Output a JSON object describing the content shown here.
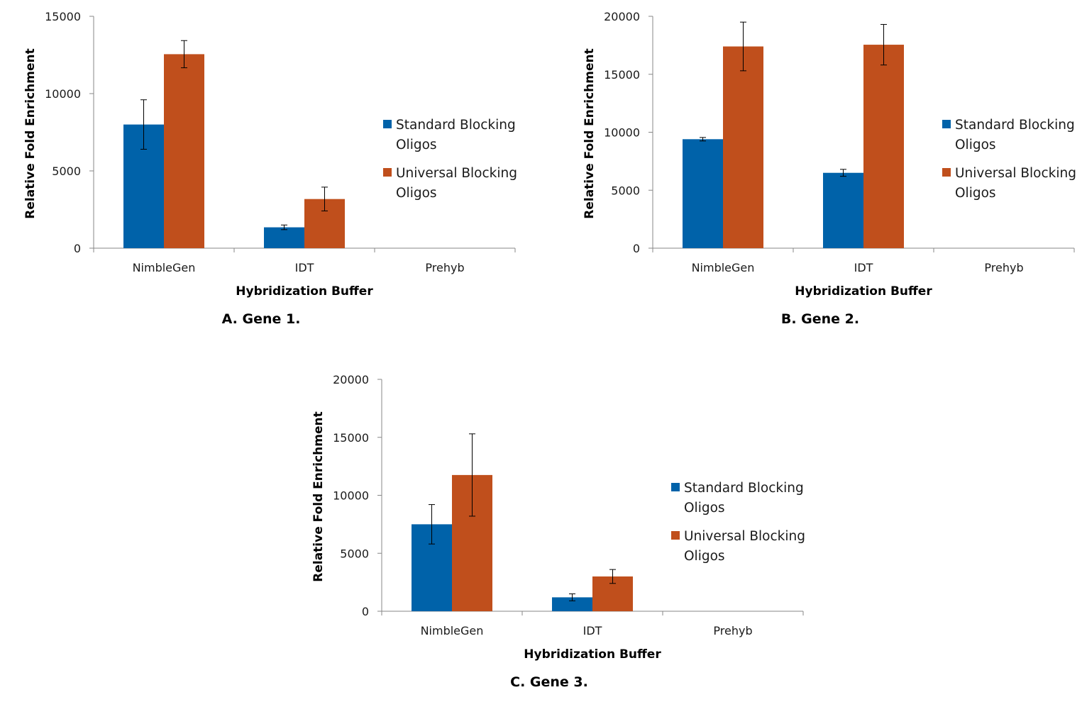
{
  "colors": {
    "standard": "#0062a9",
    "universal": "#c04f1c",
    "axis": "#878787"
  },
  "chart_data": [
    {
      "type": "bar",
      "caption": "A. Gene 1.",
      "categories": [
        "NimbleGen",
        "IDT",
        "Prehyb"
      ],
      "series": [
        {
          "name": "Standard Blocking Oligos",
          "values": [
            8000,
            1350,
            0
          ],
          "errors": [
            1600,
            150,
            0
          ]
        },
        {
          "name": "Universal Blocking Oligos",
          "values": [
            12550,
            3180,
            0
          ],
          "errors": [
            880,
            770,
            0
          ]
        }
      ],
      "xlabel": "Hybridization Buffer",
      "ylabel": "Relative Fold Enrichment",
      "ylim": [
        0,
        15000
      ],
      "yticks": [
        0,
        5000,
        10000,
        15000
      ],
      "grid": false,
      "legend": "right"
    },
    {
      "type": "bar",
      "caption": "B. Gene 2.",
      "categories": [
        "NimbleGen",
        "IDT",
        "Prehyb"
      ],
      "series": [
        {
          "name": "Standard Blocking Oligos",
          "values": [
            9400,
            6500,
            0
          ],
          "errors": [
            150,
            300,
            0
          ]
        },
        {
          "name": "Universal Blocking Oligos",
          "values": [
            17400,
            17550,
            0
          ],
          "errors": [
            2100,
            1750,
            0
          ]
        }
      ],
      "xlabel": "Hybridization Buffer",
      "ylabel": "Relative Fold Enrichment",
      "ylim": [
        0,
        20000
      ],
      "yticks": [
        0,
        5000,
        10000,
        15000,
        20000
      ],
      "grid": false,
      "legend": "right"
    },
    {
      "type": "bar",
      "caption": "C. Gene 3.",
      "categories": [
        "NimbleGen",
        "IDT",
        "Prehyb"
      ],
      "series": [
        {
          "name": "Standard Blocking Oligos",
          "values": [
            7500,
            1200,
            0
          ],
          "errors": [
            1700,
            300,
            0
          ]
        },
        {
          "name": "Universal Blocking Oligos",
          "values": [
            11750,
            3000,
            0
          ],
          "errors": [
            3550,
            600,
            0
          ]
        }
      ],
      "xlabel": "Hybridization Buffer",
      "ylabel": "Relative Fold Enrichment",
      "ylim": [
        0,
        20000
      ],
      "yticks": [
        0,
        5000,
        10000,
        15000,
        20000
      ],
      "grid": false,
      "legend": "right"
    }
  ]
}
